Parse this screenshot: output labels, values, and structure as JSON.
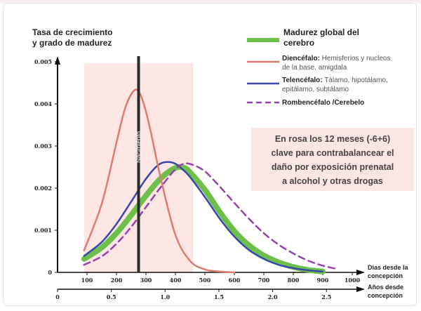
{
  "chart_data": {
    "type": "line",
    "ylabel_line1": "Tasa de crecimiento",
    "ylabel_line2": "y grado de madurez",
    "ylim": [
      0,
      0.005
    ],
    "y_ticks": [
      "0.005",
      "0.004",
      "0.003",
      "0.002",
      "0.001",
      "0"
    ],
    "y_tick_values": [
      0.005,
      0.004,
      0.003,
      0.002,
      0.001,
      0
    ],
    "xlim_days": [
      0,
      1000
    ],
    "x_ticks_days": [
      "100",
      "200",
      "300",
      "400",
      "500",
      "600",
      "700",
      "800",
      "900",
      "1000"
    ],
    "x_tick_values_days": [
      100,
      200,
      300,
      400,
      500,
      600,
      700,
      800,
      900,
      1000
    ],
    "xlabel_days_1": "Días desde la",
    "xlabel_days_2": "concepción",
    "x_ticks_years": [
      "0",
      "0.5",
      "1.0",
      "1.5",
      "2.0",
      "2.5"
    ],
    "x_tick_values_years": [
      0,
      0.5,
      1.0,
      1.5,
      2.0,
      2.5
    ],
    "xlabel_years_1": "Años desde",
    "xlabel_years_2": "concepción",
    "highlight_range_days": [
      90,
      460
    ],
    "birth_day": 275,
    "birth_label": "Nacimiento",
    "series": [
      {
        "name": "Madurez global del cerebro",
        "color": "#6cc04a",
        "style": "thick",
        "x": [
          90,
          150,
          200,
          250,
          300,
          350,
          400,
          430,
          450,
          500,
          550,
          600,
          650,
          700,
          750,
          800,
          850,
          900
        ],
        "y": [
          0.00032,
          0.00059,
          0.00093,
          0.00136,
          0.00182,
          0.00223,
          0.00248,
          0.00248,
          0.00237,
          0.00196,
          0.00144,
          0.00098,
          0.00064,
          0.0004,
          0.00024,
          0.00013,
          6e-05,
          2e-05
        ]
      },
      {
        "name": "Diencéfalo",
        "color": "#e07a6e",
        "style": "solid",
        "x": [
          90,
          150,
          200,
          230,
          260,
          280,
          300,
          320,
          350,
          400,
          450,
          500,
          550,
          600
        ],
        "y": [
          0.00052,
          0.00163,
          0.00308,
          0.00391,
          0.00432,
          0.00424,
          0.00382,
          0.00322,
          0.00224,
          0.00089,
          0.00027,
          7e-05,
          2e-05,
          0
        ]
      },
      {
        "name": "Telencéfalo",
        "color": "#3a46a8",
        "style": "solid",
        "x": [
          90,
          150,
          200,
          250,
          300,
          340,
          370,
          400,
          430,
          450,
          500,
          550,
          600,
          650,
          700,
          750,
          800,
          850,
          900
        ],
        "y": [
          0.00039,
          0.00072,
          0.00115,
          0.00168,
          0.00222,
          0.00254,
          0.00262,
          0.00258,
          0.00241,
          0.00226,
          0.00179,
          0.00128,
          0.00085,
          0.00053,
          0.00032,
          0.00018,
          0.0001,
          5e-05,
          2e-05
        ]
      },
      {
        "name": "Rombencéfalo /Cerebelo",
        "color": "#9a3fb0",
        "style": "dashed",
        "x": [
          90,
          150,
          200,
          250,
          300,
          350,
          400,
          430,
          460,
          500,
          550,
          600,
          650,
          700,
          750,
          800,
          850,
          900,
          950
        ],
        "y": [
          0.00018,
          0.00038,
          0.00068,
          0.00108,
          0.00155,
          0.00202,
          0.00245,
          0.00258,
          0.00255,
          0.0024,
          0.00204,
          0.00165,
          0.00127,
          0.00093,
          0.00066,
          0.00045,
          0.00028,
          0.00016,
          8e-05
        ]
      }
    ]
  },
  "legend": {
    "global_line1": "Madurez global del",
    "global_line2": "cerebro",
    "dien_bold": "Diencéfalo:",
    "dien_desc1": " Hemisferios y nucleos",
    "dien_desc2": "de la base, amigdala",
    "tele_bold": "Telencéfalo:",
    "tele_desc1": " Tálamo, hipotálamo,",
    "tele_desc2": "epitálamo, subtálamo",
    "romb_label": "Rombencéfalo /Cerebelo"
  },
  "note": {
    "line1": "En rosa los 12 meses (-6+6)",
    "line2": "clave para contrabalancear el",
    "line3": "daño por exposición prenatal",
    "line4": "a alcohol y otras drogas",
    "background": "#fbe6e3"
  }
}
